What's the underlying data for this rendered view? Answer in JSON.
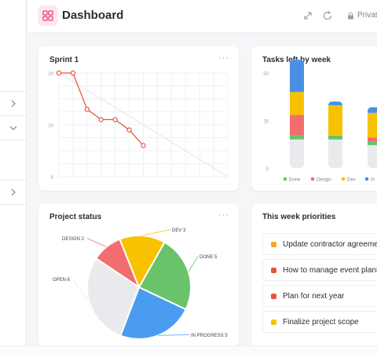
{
  "header": {
    "title": "Dashboard",
    "privacy_label": "Private"
  },
  "sprint": {
    "title": "Sprint 1",
    "menu": "···",
    "y_ticks": [
      "20",
      "10",
      "0"
    ]
  },
  "tasks_week": {
    "title": "Tasks left by week",
    "y_ticks": [
      "50",
      "25",
      "0"
    ],
    "legend": [
      "Done",
      "Design",
      "Dev",
      "In"
    ]
  },
  "project_status": {
    "title": "Project status",
    "menu": "···",
    "labels": [
      "DESIGN 2",
      "DEV 3",
      "DONE 5",
      "OPEN 6",
      "IN PROGRESS 5"
    ]
  },
  "priorities": {
    "title": "This week priorities",
    "items": [
      {
        "label": "Update contractor agreeme",
        "color": "#f5a623"
      },
      {
        "label": "How to manage event plann",
        "color": "#e8553f"
      },
      {
        "label": "Plan for next year",
        "color": "#e8553f"
      },
      {
        "label": "Finalize project scope",
        "color": "#f8c200"
      }
    ]
  },
  "chart_data": [
    {
      "type": "line",
      "title": "Sprint 1",
      "ylim": [
        0,
        20
      ],
      "series": [
        {
          "values": [
            20,
            20,
            13,
            11,
            11,
            9,
            6
          ]
        }
      ],
      "ideal_line": [
        20,
        0
      ]
    },
    {
      "type": "bar",
      "title": "Tasks left by week",
      "ylim": [
        0,
        50
      ],
      "stacked": true,
      "series": [
        {
          "name": "Done",
          "color": "#69c36b",
          "values": [
            2,
            2,
            2
          ]
        },
        {
          "name": "Design",
          "color": "#f26d6d",
          "values": [
            11,
            0,
            2
          ]
        },
        {
          "name": "Dev",
          "color": "#f8c200",
          "values": [
            12,
            16,
            13
          ]
        },
        {
          "name": "In",
          "color": "#4a90e2",
          "values": [
            17,
            2,
            3
          ]
        }
      ],
      "base": [
        15,
        15,
        12
      ]
    },
    {
      "type": "pie",
      "title": "Project status",
      "slices": [
        {
          "label": "DESIGN 2",
          "value": 2,
          "color": "#f26d6d"
        },
        {
          "label": "DEV 3",
          "value": 3,
          "color": "#f8c200"
        },
        {
          "label": "DONE 5",
          "value": 5,
          "color": "#69c36b"
        },
        {
          "label": "IN PROGRESS 5",
          "value": 5,
          "color": "#4a9cf0"
        },
        {
          "label": "OPEN 6",
          "value": 6,
          "color": "#e9eaee"
        }
      ]
    }
  ]
}
